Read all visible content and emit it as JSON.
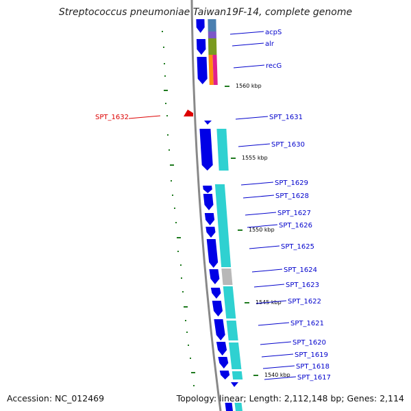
{
  "title": "Streptococcus pneumoniae Taiwan19F-14, complete genome",
  "footer": {
    "accession": "Accession: NC_012469",
    "summary": "Topology: linear; Length: 2,112,148 bp; Genes: 2,114"
  },
  "colors": {
    "backbone": "#888888",
    "gene_forward": "#0000e6",
    "cog_cyan": "#2fd1d1",
    "cog_gray": "#b8b8b8",
    "kbp_tick": "#1e7a1e",
    "gene_label": "#0000cc",
    "highlight": "#dd0000"
  },
  "gene_labels": [
    {
      "id": "acpS",
      "text": "acpS"
    },
    {
      "id": "alr",
      "text": "alr"
    },
    {
      "id": "recG",
      "text": "recG"
    },
    {
      "id": "SPT_1631",
      "text": "SPT_1631"
    },
    {
      "id": "SPT_1630",
      "text": "SPT_1630"
    },
    {
      "id": "SPT_1629",
      "text": "SPT_1629"
    },
    {
      "id": "SPT_1628",
      "text": "SPT_1628"
    },
    {
      "id": "SPT_1627",
      "text": "SPT_1627"
    },
    {
      "id": "SPT_1626",
      "text": "SPT_1626"
    },
    {
      "id": "SPT_1625",
      "text": "SPT_1625"
    },
    {
      "id": "SPT_1624",
      "text": "SPT_1624"
    },
    {
      "id": "SPT_1623",
      "text": "SPT_1623"
    },
    {
      "id": "SPT_1622",
      "text": "SPT_1622"
    },
    {
      "id": "SPT_1621",
      "text": "SPT_1621"
    },
    {
      "id": "SPT_1620",
      "text": "SPT_1620"
    },
    {
      "id": "SPT_1619",
      "text": "SPT_1619"
    },
    {
      "id": "SPT_1618",
      "text": "SPT_1618"
    },
    {
      "id": "SPT_1617",
      "text": "SPT_1617"
    }
  ],
  "highlight_label": "SPT_1632",
  "kbp_labels": [
    "1560 kbp",
    "1555 kbp",
    "1550 kbp",
    "1545 kbp",
    "1540 kbp"
  ]
}
